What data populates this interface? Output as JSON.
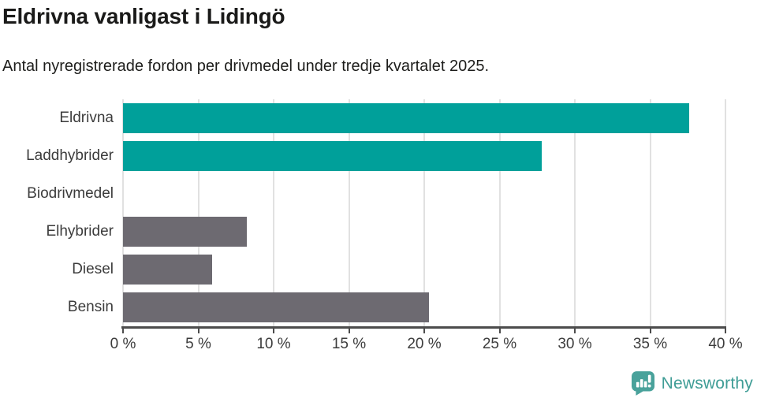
{
  "header": {
    "title": "Eldrivna vanligast i Lidingö",
    "subtitle": "Antal nyregistrerade fordon per drivmedel under tredje kvartalet 2025."
  },
  "chart_data": {
    "type": "bar",
    "orientation": "horizontal",
    "title": "Eldrivna vanligast i Lidingö",
    "xlabel": "",
    "ylabel": "",
    "unit": "%",
    "categories": [
      "Eldrivna",
      "Laddhybrider",
      "Biodrivmedel",
      "Elhybrider",
      "Diesel",
      "Bensin"
    ],
    "values": [
      37.6,
      27.8,
      0,
      8.2,
      5.9,
      20.3
    ],
    "xlim": [
      0,
      40
    ],
    "x_ticks": [
      0,
      5,
      10,
      15,
      20,
      25,
      30,
      35,
      40
    ],
    "x_tick_labels": [
      "0 %",
      "5 %",
      "10 %",
      "15 %",
      "20 %",
      "25 %",
      "30 %",
      "35 %",
      "40 %"
    ],
    "grid": true,
    "legend": "none",
    "bar_colors": [
      "#00a09a",
      "#00a09a",
      "#6d6a71",
      "#6d6a71",
      "#6d6a71",
      "#6d6a71"
    ],
    "highlight_color": "#00a09a",
    "default_color": "#6d6a71"
  },
  "footer": {
    "brand": "Newsworthy",
    "brand_color": "#3f9d96",
    "logo_fill": "#49a29b"
  }
}
